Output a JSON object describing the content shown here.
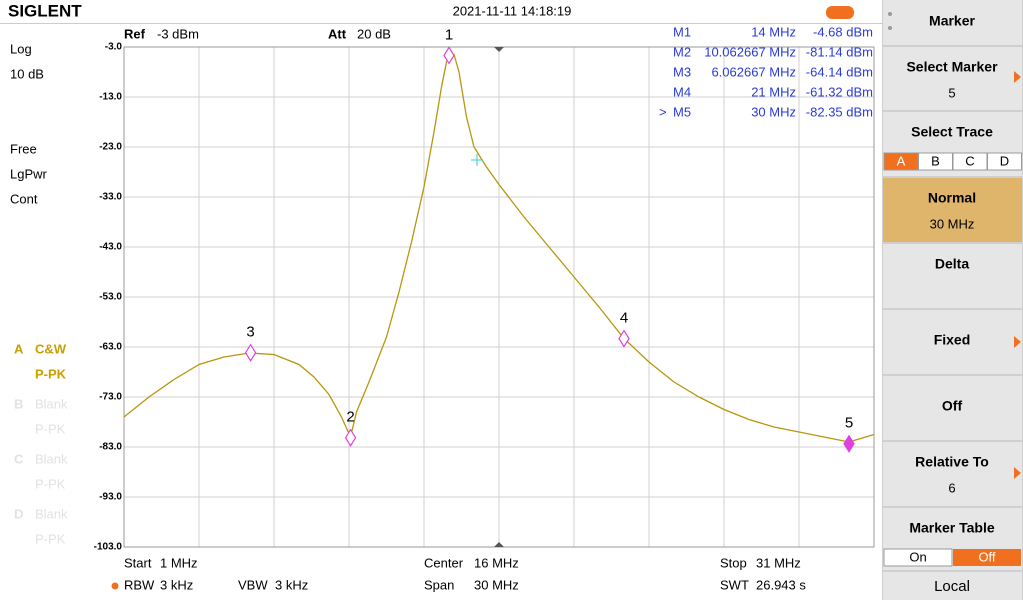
{
  "header": {
    "brand": "SIGLENT",
    "datetime": "2021-11-11 14:18:19"
  },
  "settings": {
    "ref_label": "Ref",
    "ref_value": "-3 dBm",
    "att_label": "Att",
    "att_value": "20 dB"
  },
  "left_panel": {
    "scale": "Log",
    "scale_div": "10 dB",
    "items": [
      "Free",
      "LgPwr",
      "Cont"
    ]
  },
  "traces": [
    {
      "letter": "A",
      "mode": "C&W",
      "detector": "P-PK",
      "active": true
    },
    {
      "letter": "B",
      "mode": "Blank",
      "detector": "P-PK",
      "active": false
    },
    {
      "letter": "C",
      "mode": "Blank",
      "detector": "P-PK",
      "active": false
    },
    {
      "letter": "D",
      "mode": "Blank",
      "detector": "P-PK",
      "active": false
    }
  ],
  "plot": {
    "xlim": [
      1,
      31
    ],
    "ylim": [
      -103,
      -3
    ],
    "yticks": [
      {
        "value": -3,
        "label": "-3.0"
      },
      {
        "value": -13,
        "label": "-13.0"
      },
      {
        "value": -23,
        "label": "-23.0"
      },
      {
        "value": -33,
        "label": "-33.0"
      },
      {
        "value": -43,
        "label": "-43.0"
      },
      {
        "value": -53,
        "label": "-53.0"
      },
      {
        "value": -63,
        "label": "-63.0"
      },
      {
        "value": -73,
        "label": "-73.0"
      },
      {
        "value": -83,
        "label": "-83.0"
      },
      {
        "value": -93,
        "label": "-93.0"
      },
      {
        "value": -103,
        "label": "-103.0"
      }
    ],
    "trace": {
      "color": "#b8960c",
      "x": [
        1,
        2,
        3,
        4,
        5,
        6,
        7,
        8,
        8.6,
        9.2,
        9.7,
        10.06,
        10.3,
        10.8,
        11.5,
        12,
        12.5,
        13,
        13.4,
        13.7,
        13.9,
        14,
        14.2,
        14.4,
        14.7,
        15,
        15.5,
        16,
        17,
        18,
        19,
        20,
        21,
        22,
        23,
        24,
        25,
        26,
        27,
        28,
        29,
        30,
        31
      ],
      "values": [
        -77,
        -73,
        -69.5,
        -66.5,
        -65,
        -64.2,
        -64.5,
        -66.5,
        -69,
        -72.5,
        -77,
        -81,
        -76,
        -70,
        -61,
        -52,
        -42,
        -31,
        -20,
        -11,
        -6,
        -4.7,
        -4.5,
        -8,
        -17,
        -23,
        -27,
        -30.5,
        -37,
        -43,
        -49,
        -55,
        -61.3,
        -66,
        -70,
        -73,
        -75.5,
        -77.5,
        -79,
        -80,
        -81,
        -82,
        -80.5
      ]
    },
    "markers": [
      {
        "name": "M1",
        "tag": "1",
        "x": 14,
        "x_label": "14 MHz",
        "value": -4.68,
        "value_label": "-4.68 dBm"
      },
      {
        "name": "M2",
        "tag": "2",
        "x": 10.062667,
        "x_label": "10.062667 MHz",
        "value": -81.14,
        "value_label": "-81.14 dBm"
      },
      {
        "name": "M3",
        "tag": "3",
        "x": 6.062667,
        "x_label": "6.062667 MHz",
        "value": -64.14,
        "value_label": "-64.14 dBm"
      },
      {
        "name": "M4",
        "tag": "4",
        "x": 21,
        "x_label": "21 MHz",
        "value": -61.32,
        "value_label": "-61.32 dBm"
      },
      {
        "name": "M5",
        "tag": "5",
        "x": 30,
        "x_label": "30 MHz",
        "value": -82.35,
        "value_label": "-82.35 dBm",
        "active": true
      }
    ],
    "active_pointer": ">"
  },
  "footer": {
    "start_label": "Start",
    "start": "1 MHz",
    "center_label": "Center",
    "center": "16 MHz",
    "stop_label": "Stop",
    "stop": "31 MHz",
    "rbw_label": "RBW",
    "rbw": "3 kHz",
    "vbw_label": "VBW",
    "vbw": "3 kHz",
    "span_label": "Span",
    "span": "30 MHz",
    "swt_label": "SWT",
    "swt": "26.943 s"
  },
  "menu": {
    "title": "Marker",
    "select_marker": "Select Marker",
    "select_marker_value": "5",
    "select_trace": "Select Trace",
    "trace_tabs": [
      "A",
      "B",
      "C",
      "D"
    ],
    "normal": "Normal",
    "normal_value": "30 MHz",
    "delta": "Delta",
    "fixed": "Fixed",
    "off": "Off",
    "relative_to": "Relative To",
    "relative_to_value": "6",
    "marker_table": "Marker Table",
    "table_on": "On",
    "table_off": "Off",
    "local": "Local"
  }
}
